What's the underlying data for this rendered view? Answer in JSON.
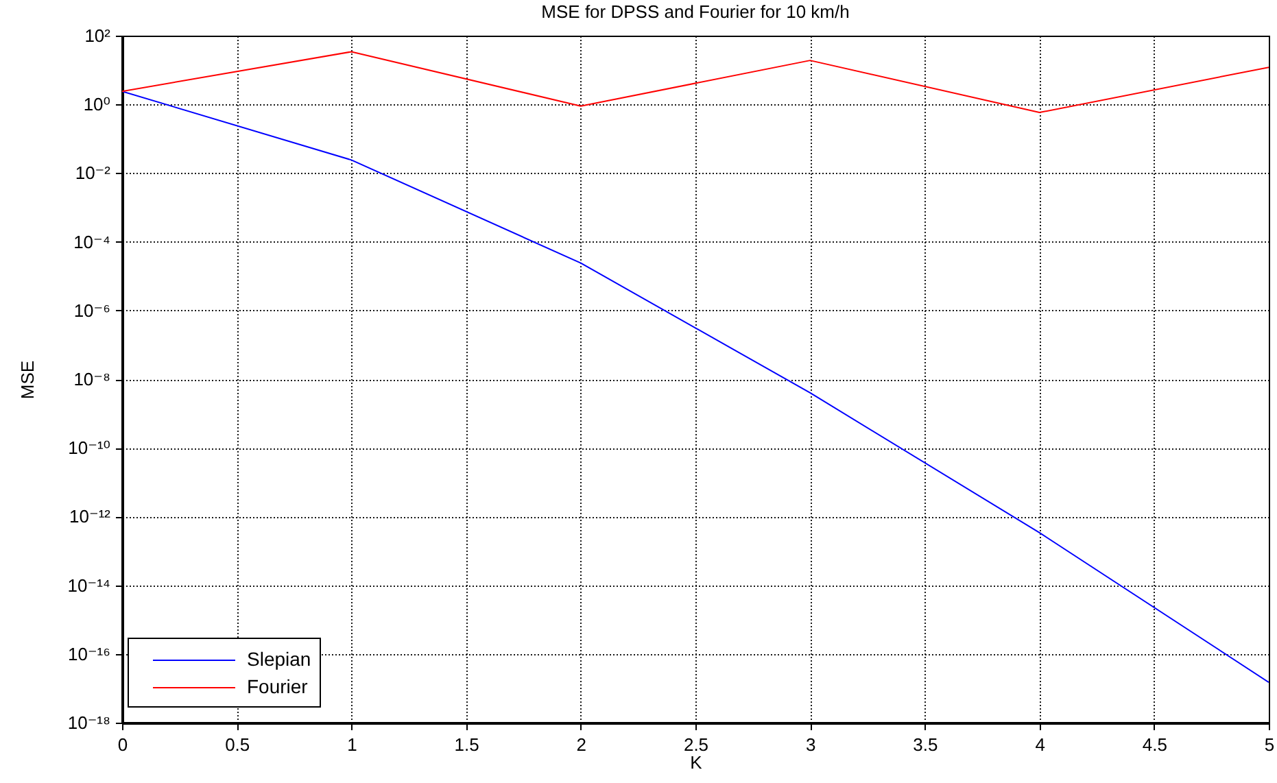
{
  "chart_data": {
    "type": "line",
    "title": "MSE for DPSS and Fourier for 10 km/h",
    "xlabel": "K",
    "ylabel": "MSE",
    "x": [
      0,
      1,
      2,
      3,
      4,
      5
    ],
    "series": [
      {
        "name": "Slepian",
        "color": "#0000ff",
        "values": [
          2.4,
          0.024,
          2.4e-05,
          4e-09,
          3.4e-13,
          1.5e-17
        ]
      },
      {
        "name": "Fourier",
        "color": "#ff0000",
        "values": [
          2.4,
          34,
          0.89,
          19,
          0.58,
          12
        ]
      }
    ],
    "xlim": [
      0,
      5
    ],
    "xticks": [
      0,
      0.5,
      1,
      1.5,
      2,
      2.5,
      3,
      3.5,
      4,
      4.5,
      5
    ],
    "ylim": [
      1e-18,
      100
    ],
    "yticks": [
      {
        "value": 1e-18,
        "label": "10⁻¹⁸"
      },
      {
        "value": 1e-16,
        "label": "10⁻¹⁶"
      },
      {
        "value": 1e-14,
        "label": "10⁻¹⁴"
      },
      {
        "value": 1e-12,
        "label": "10⁻¹²"
      },
      {
        "value": 1e-10,
        "label": "10⁻¹⁰"
      },
      {
        "value": 1e-08,
        "label": "10⁻⁸"
      },
      {
        "value": 1e-06,
        "label": "10⁻⁶"
      },
      {
        "value": 0.0001,
        "label": "10⁻⁴"
      },
      {
        "value": 0.01,
        "label": "10⁻²"
      },
      {
        "value": 1,
        "label": "10⁰"
      },
      {
        "value": 100,
        "label": "10²"
      }
    ],
    "log": "y",
    "grid": true,
    "legend": "bottom left",
    "marker": "none",
    "line_style": "solid"
  }
}
